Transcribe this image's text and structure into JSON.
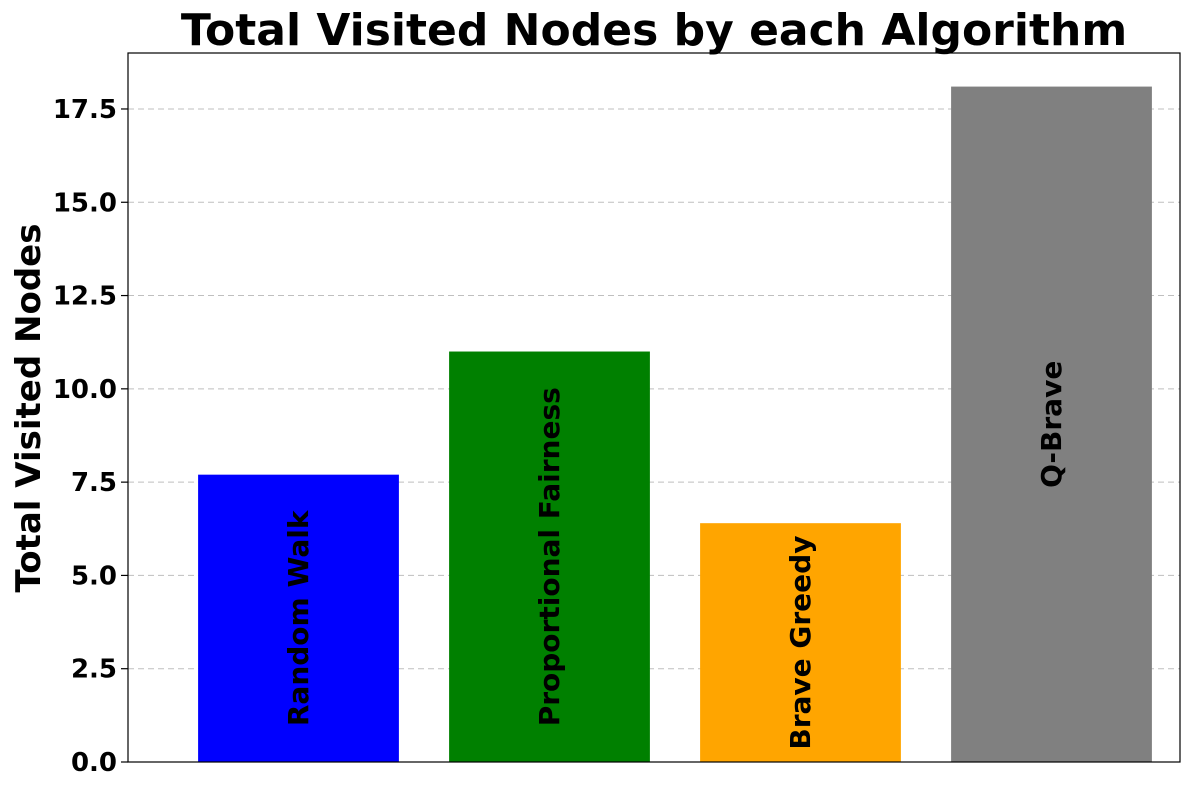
{
  "chart_data": {
    "type": "bar",
    "title": "Total Visited Nodes by each Algorithm",
    "xlabel": "",
    "ylabel": "Total Visited Nodes",
    "categories": [
      "Random Walk",
      "Proportional Fairness",
      "Brave Greedy",
      "Q-Brave"
    ],
    "values": [
      7.7,
      11.0,
      6.4,
      18.1
    ],
    "colors": [
      "#0000ff",
      "#008000",
      "#ffa500",
      "#808080"
    ],
    "ylim": [
      0,
      19.0
    ],
    "yticks": [
      0.0,
      2.5,
      5.0,
      7.5,
      10.0,
      12.5,
      15.0,
      17.5
    ],
    "ytick_labels": [
      "0.0",
      "2.5",
      "5.0",
      "7.5",
      "10.0",
      "12.5",
      "15.0",
      "17.5"
    ],
    "grid": "y-dashed",
    "legend": "none",
    "bar_labels": "rotated-inside"
  }
}
